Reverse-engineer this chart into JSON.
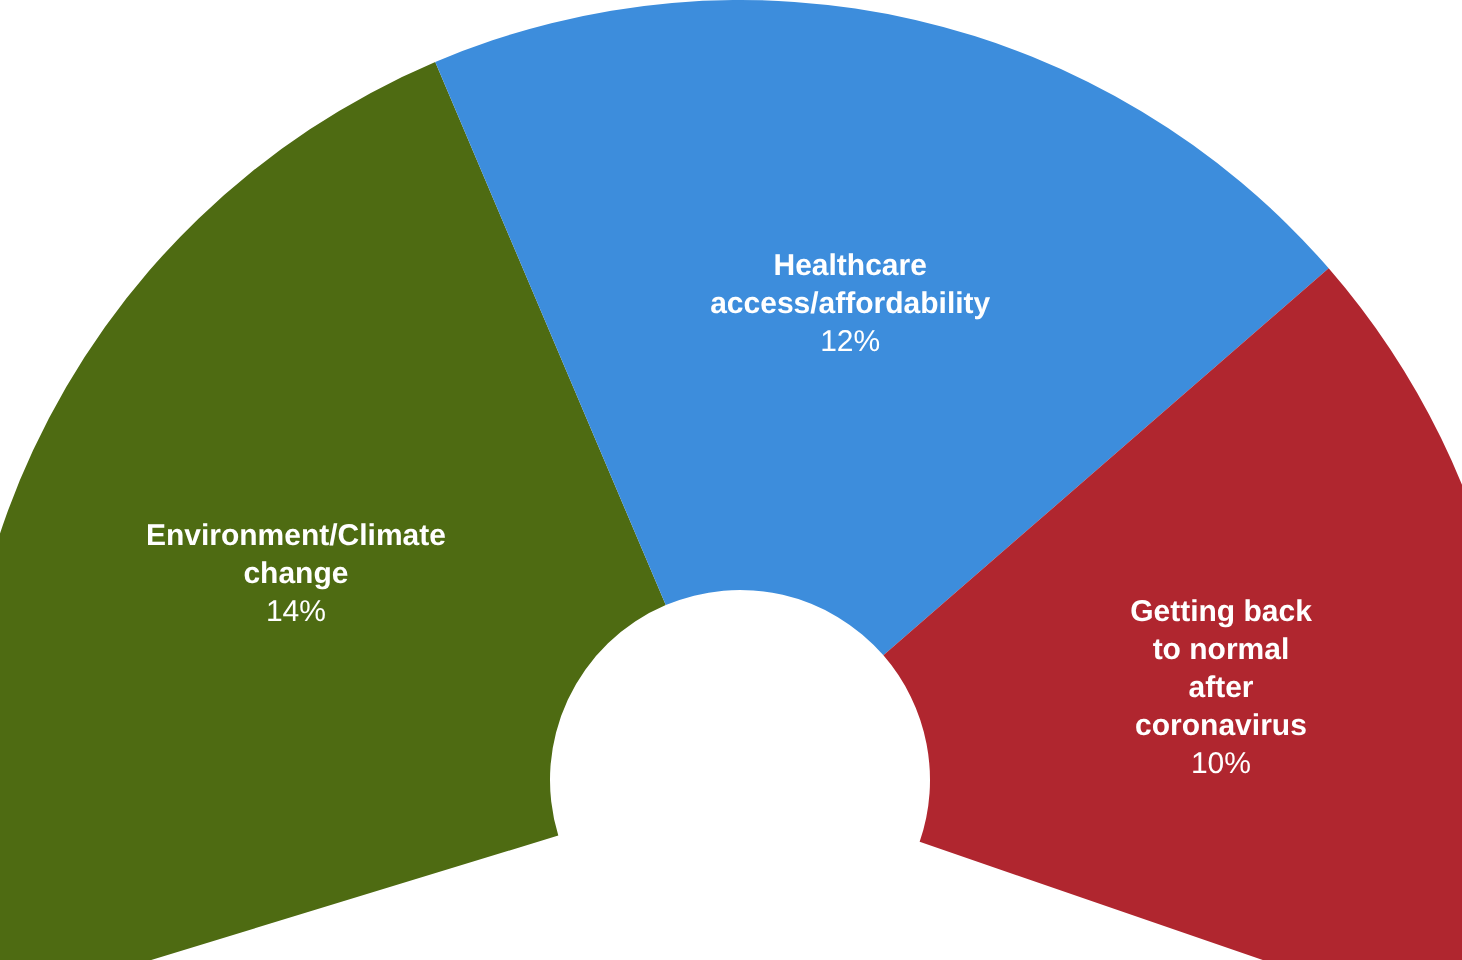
{
  "chart_data": {
    "type": "donut",
    "categories": [
      "Environment/Climate change",
      "Healthcare access/affordability",
      "Getting back to normal after coronavirus"
    ],
    "values": [
      14,
      12,
      10
    ],
    "value_labels": [
      "14%",
      "12%",
      "10%"
    ],
    "colors": [
      "#4e6b12",
      "#3d8ddc",
      "#b0262f"
    ],
    "legend": false
  }
}
